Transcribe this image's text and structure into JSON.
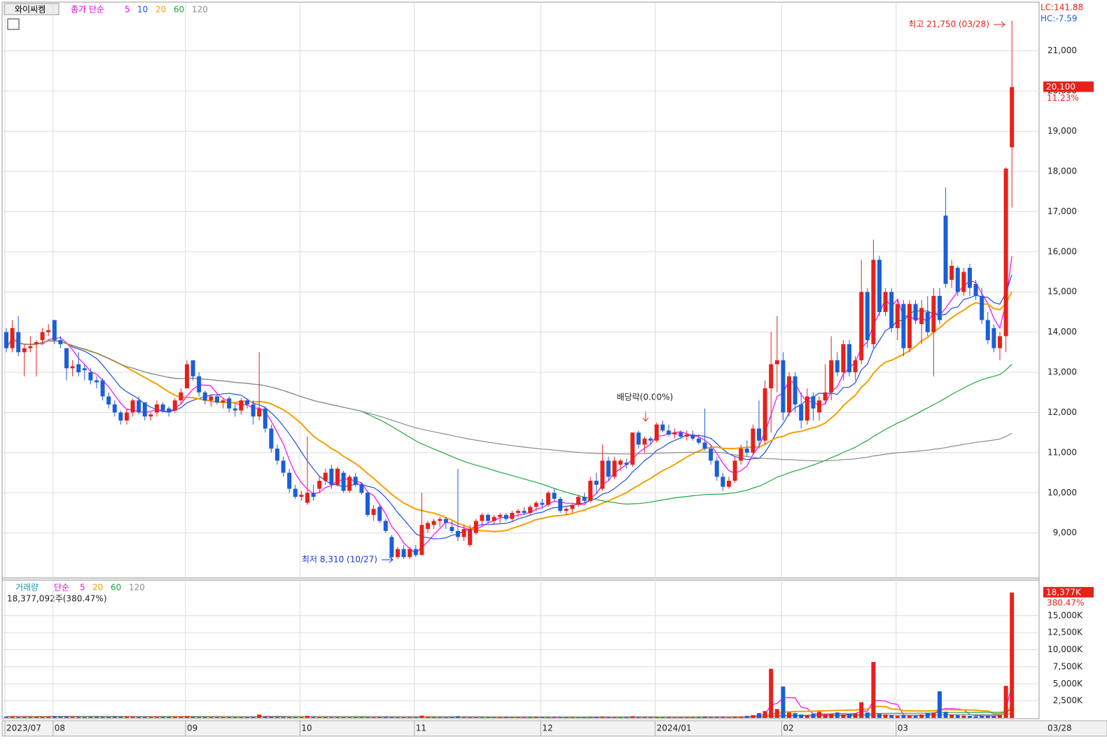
{
  "chart_data": {
    "type": "candlestick",
    "stock_name": "와이씨켐",
    "price_legend_label": "종가 단순",
    "price_ma": [
      {
        "period": 5,
        "color": "#ff00ff"
      },
      {
        "period": 10,
        "color": "#1f4fe0"
      },
      {
        "period": 20,
        "color": "#f5a000"
      },
      {
        "period": 60,
        "color": "#1fa83c"
      },
      {
        "period": 120,
        "color": "#8c8c8c"
      }
    ],
    "lc_label": "LC:141.88",
    "hc_label": "HC:-7.59",
    "high_annotation": "최고 21,750 (03/28)",
    "low_annotation": "최저 8,310 (10/27)",
    "event_annotation": "배당락(0.00%)",
    "last_price_label": "20,100",
    "last_change_label": "11.23%",
    "up_color": "#e8201a",
    "down_color": "#1a5ed8",
    "ylim": [
      7950,
      22180
    ],
    "yticks": [
      {
        "value": 9000,
        "label": "9,000"
      },
      {
        "value": 10000,
        "label": "10,000"
      },
      {
        "value": 11000,
        "label": "11,000"
      },
      {
        "value": 12000,
        "label": "12,000"
      },
      {
        "value": 13000,
        "label": "13,000"
      },
      {
        "value": 14000,
        "label": "14,000"
      },
      {
        "value": 15000,
        "label": "15,000"
      },
      {
        "value": 16000,
        "label": "16,000"
      },
      {
        "value": 17000,
        "label": "17,000"
      },
      {
        "value": 18000,
        "label": "18,000"
      },
      {
        "value": 19000,
        "label": "19,000"
      },
      {
        "value": 20000,
        "label": "20,000"
      },
      {
        "value": 21000,
        "label": "21,000"
      }
    ],
    "categories": [
      "2023/07",
      null,
      null,
      null,
      null,
      null,
      null,
      null,
      "08",
      null,
      null,
      null,
      null,
      null,
      null,
      null,
      null,
      null,
      null,
      null,
      null,
      null,
      null,
      null,
      null,
      null,
      null,
      null,
      null,
      null,
      "09",
      null,
      null,
      null,
      null,
      null,
      null,
      null,
      null,
      null,
      null,
      null,
      null,
      null,
      null,
      null,
      null,
      null,
      null,
      "10",
      null,
      null,
      null,
      null,
      null,
      null,
      null,
      null,
      null,
      null,
      null,
      null,
      null,
      null,
      null,
      null,
      null,
      null,
      "11",
      null,
      null,
      null,
      null,
      null,
      null,
      null,
      null,
      null,
      null,
      null,
      null,
      null,
      null,
      null,
      null,
      null,
      null,
      null,
      null,
      "12",
      null,
      null,
      null,
      null,
      null,
      null,
      null,
      null,
      null,
      null,
      null,
      null,
      null,
      null,
      null,
      null,
      null,
      null,
      "2024/01",
      null,
      null,
      null,
      null,
      null,
      null,
      null,
      null,
      null,
      null,
      null,
      null,
      null,
      null,
      null,
      null,
      null,
      null,
      null,
      null,
      "02",
      null,
      null,
      null,
      null,
      null,
      null,
      null,
      null,
      null,
      null,
      null,
      null,
      null,
      null,
      null,
      null,
      null,
      null,
      "03",
      null,
      null,
      null,
      null,
      null,
      null,
      null,
      null,
      null,
      null,
      null,
      null,
      null,
      null,
      null,
      null,
      null,
      null,
      null
    ],
    "x_end_label": "03/28",
    "ohlc": [
      [
        14000,
        14100,
        13500,
        13600
      ],
      [
        13600,
        14300,
        13500,
        14100
      ],
      [
        14000,
        14400,
        13400,
        13500
      ],
      [
        13500,
        13700,
        12900,
        13600
      ],
      [
        13600,
        13900,
        13500,
        13650
      ],
      [
        13700,
        13800,
        12900,
        13750
      ],
      [
        13800,
        14100,
        13700,
        14000
      ],
      [
        14000,
        14200,
        13900,
        14050
      ],
      [
        14300,
        14300,
        13700,
        13800
      ],
      [
        13800,
        13900,
        13600,
        13700
      ],
      [
        13600,
        13600,
        12800,
        13100
      ],
      [
        13100,
        13300,
        12900,
        13150
      ],
      [
        13200,
        13500,
        12900,
        13000
      ],
      [
        13100,
        13200,
        12800,
        13050
      ],
      [
        13000,
        13100,
        12700,
        12800
      ],
      [
        12800,
        12900,
        12600,
        12750
      ],
      [
        12800,
        12850,
        12300,
        12400
      ],
      [
        12400,
        12500,
        12100,
        12200
      ],
      [
        12200,
        12300,
        11900,
        12000
      ],
      [
        12000,
        12050,
        11700,
        11800
      ],
      [
        11800,
        12100,
        11700,
        12000
      ],
      [
        12000,
        12350,
        11900,
        12300
      ],
      [
        12300,
        12400,
        11950,
        12000
      ],
      [
        12250,
        12250,
        11800,
        11900
      ],
      [
        11900,
        12000,
        11800,
        11950
      ],
      [
        12000,
        12300,
        11900,
        12200
      ],
      [
        12200,
        12250,
        12000,
        12050
      ],
      [
        12100,
        12150,
        11900,
        12000
      ],
      [
        12050,
        12350,
        12000,
        12300
      ],
      [
        12300,
        12600,
        12200,
        12500
      ],
      [
        12600,
        13300,
        12600,
        13200
      ],
      [
        13300,
        13300,
        12800,
        12900
      ],
      [
        12900,
        13000,
        12400,
        12500
      ],
      [
        12500,
        12550,
        12200,
        12300
      ],
      [
        12300,
        12450,
        12150,
        12400
      ],
      [
        12400,
        12450,
        12200,
        12250
      ],
      [
        12250,
        12350,
        12100,
        12300
      ],
      [
        12350,
        12400,
        12000,
        12100
      ],
      [
        12100,
        12200,
        11900,
        12050
      ],
      [
        12050,
        12350,
        11950,
        12300
      ],
      [
        12300,
        12350,
        12100,
        12200
      ],
      [
        12200,
        12300,
        11700,
        11900
      ],
      [
        11900,
        13500,
        11800,
        12100
      ],
      [
        12100,
        12150,
        11500,
        11600
      ],
      [
        11600,
        11700,
        11000,
        11100
      ],
      [
        11100,
        11200,
        10700,
        10800
      ],
      [
        10800,
        10900,
        10400,
        10500
      ],
      [
        10500,
        10600,
        10000,
        10100
      ],
      [
        10100,
        10200,
        9850,
        9900
      ],
      [
        9900,
        10050,
        9800,
        9950
      ],
      [
        9750,
        11400,
        9700,
        10000
      ],
      [
        10000,
        10200,
        9800,
        9900
      ],
      [
        10100,
        10400,
        10000,
        10300
      ],
      [
        10300,
        10600,
        10200,
        10500
      ],
      [
        10600,
        10700,
        10100,
        10200
      ],
      [
        10200,
        10650,
        10150,
        10600
      ],
      [
        10500,
        10550,
        10000,
        10050
      ],
      [
        10050,
        10450,
        10000,
        10400
      ],
      [
        10400,
        10500,
        10150,
        10200
      ],
      [
        10200,
        10250,
        9950,
        10000
      ],
      [
        10000,
        10050,
        9400,
        9450
      ],
      [
        9450,
        9700,
        9300,
        9600
      ],
      [
        9650,
        9700,
        9250,
        9300
      ],
      [
        9300,
        9350,
        9000,
        9050
      ],
      [
        8900,
        8950,
        8310,
        8400
      ],
      [
        8400,
        8650,
        8350,
        8600
      ],
      [
        8600,
        8700,
        8350,
        8400
      ],
      [
        8400,
        8650,
        8350,
        8600
      ],
      [
        8600,
        8700,
        8400,
        8450
      ],
      [
        8450,
        10000,
        8450,
        9200
      ],
      [
        9100,
        9300,
        9000,
        9250
      ],
      [
        9200,
        9350,
        9100,
        9300
      ],
      [
        9300,
        9400,
        9150,
        9350
      ],
      [
        9350,
        9400,
        9100,
        9250
      ],
      [
        9150,
        9300,
        9000,
        9050
      ],
      [
        9050,
        10600,
        8800,
        8900
      ],
      [
        8900,
        9200,
        8800,
        9100
      ],
      [
        8700,
        9200,
        8650,
        9100
      ],
      [
        9000,
        9350,
        8950,
        9300
      ],
      [
        9300,
        9500,
        9200,
        9450
      ],
      [
        9450,
        9500,
        9250,
        9300
      ],
      [
        9300,
        9450,
        9200,
        9400
      ],
      [
        9400,
        9500,
        9250,
        9450
      ],
      [
        9450,
        9500,
        9300,
        9350
      ],
      [
        9350,
        9550,
        9300,
        9500
      ],
      [
        9500,
        9600,
        9400,
        9550
      ],
      [
        9550,
        9650,
        9450,
        9500
      ],
      [
        9500,
        9700,
        9450,
        9650
      ],
      [
        9650,
        9800,
        9550,
        9750
      ],
      [
        9750,
        9850,
        9600,
        9700
      ],
      [
        9700,
        10050,
        9650,
        10000
      ],
      [
        10000,
        10100,
        9800,
        9850
      ],
      [
        9850,
        9900,
        9500,
        9550
      ],
      [
        9550,
        9650,
        9450,
        9600
      ],
      [
        9600,
        9750,
        9500,
        9700
      ],
      [
        9700,
        9950,
        9650,
        9900
      ],
      [
        9900,
        10000,
        9750,
        9800
      ],
      [
        9800,
        10400,
        9750,
        10300
      ],
      [
        10300,
        10500,
        10000,
        10200
      ],
      [
        10100,
        11200,
        10050,
        10800
      ],
      [
        10800,
        10900,
        10300,
        10400
      ],
      [
        10400,
        10900,
        10350,
        10800
      ],
      [
        10700,
        10850,
        10550,
        10800
      ],
      [
        10750,
        10850,
        10600,
        10700
      ],
      [
        10700,
        11500,
        10650,
        11500
      ],
      [
        11500,
        11550,
        11100,
        11200
      ],
      [
        11200,
        11400,
        11000,
        11350
      ],
      [
        11350,
        11400,
        11200,
        11300
      ],
      [
        11300,
        11750,
        11250,
        11700
      ],
      [
        11700,
        11800,
        11500,
        11550
      ],
      [
        11550,
        11700,
        11400,
        11450
      ],
      [
        11450,
        11600,
        11350,
        11500
      ],
      [
        11500,
        11550,
        11350,
        11400
      ],
      [
        11400,
        11550,
        11300,
        11450
      ],
      [
        11450,
        11550,
        11300,
        11350
      ],
      [
        11350,
        11450,
        11200,
        11250
      ],
      [
        11250,
        12100,
        11050,
        11100
      ],
      [
        11100,
        11200,
        10700,
        10800
      ],
      [
        10800,
        10900,
        10300,
        10400
      ],
      [
        10400,
        10500,
        10050,
        10150
      ],
      [
        10150,
        10400,
        10100,
        10300
      ],
      [
        10300,
        10900,
        10250,
        10800
      ],
      [
        10800,
        11200,
        10700,
        11100
      ],
      [
        11100,
        11300,
        10900,
        11000
      ],
      [
        11000,
        11700,
        10950,
        11600
      ],
      [
        11600,
        12300,
        11100,
        11300
      ],
      [
        11300,
        12800,
        11200,
        12600
      ],
      [
        12600,
        14000,
        11500,
        13200
      ],
      [
        13200,
        14400,
        12500,
        13300
      ],
      [
        13300,
        13500,
        11800,
        12000
      ],
      [
        12000,
        13000,
        11900,
        12900
      ],
      [
        12900,
        13000,
        12000,
        12200
      ],
      [
        12200,
        12500,
        11600,
        11800
      ],
      [
        11800,
        12600,
        11700,
        12400
      ],
      [
        12400,
        12500,
        11800,
        12100
      ],
      [
        12000,
        12400,
        11800,
        12300
      ],
      [
        12300,
        13200,
        12200,
        12500
      ],
      [
        12500,
        13900,
        12300,
        13300
      ],
      [
        13300,
        13500,
        12900,
        13000
      ],
      [
        13000,
        13800,
        12800,
        13700
      ],
      [
        13700,
        13800,
        12900,
        13000
      ],
      [
        13000,
        13400,
        12800,
        13300
      ],
      [
        13300,
        15800,
        13200,
        15000
      ],
      [
        15000,
        15100,
        13600,
        13800
      ],
      [
        13700,
        16300,
        13600,
        15800
      ],
      [
        15800,
        15900,
        14400,
        14500
      ],
      [
        14500,
        15100,
        14400,
        15000
      ],
      [
        15000,
        15100,
        14000,
        14100
      ],
      [
        14100,
        14800,
        13800,
        14700
      ],
      [
        14700,
        14800,
        13400,
        13600
      ],
      [
        13600,
        14800,
        13500,
        14700
      ],
      [
        14700,
        14800,
        14200,
        14300
      ],
      [
        14200,
        14800,
        13700,
        14600
      ],
      [
        14500,
        14900,
        13900,
        14000
      ],
      [
        14000,
        15100,
        12900,
        14900
      ],
      [
        14900,
        15100,
        14200,
        14300
      ],
      [
        16900,
        17600,
        15100,
        15200
      ],
      [
        15300,
        15800,
        15100,
        15650
      ],
      [
        15600,
        15650,
        14900,
        15000
      ],
      [
        15000,
        15600,
        14900,
        15500
      ],
      [
        15600,
        15700,
        14900,
        15100
      ],
      [
        15200,
        15300,
        14800,
        14900
      ],
      [
        14900,
        15100,
        14200,
        14300
      ],
      [
        14300,
        14500,
        13700,
        13800
      ],
      [
        14100,
        14200,
        13500,
        13600
      ],
      [
        13600,
        14000,
        13300,
        13900
      ],
      [
        13900,
        18100,
        13500,
        18070
      ],
      [
        18600,
        21750,
        17100,
        20100
      ]
    ],
    "volume_legend_label": "거래량",
    "volume_ma_label": "단순",
    "volume_ma": [
      {
        "period": 5,
        "color": "#ff00ff"
      },
      {
        "period": 20,
        "color": "#f5a000"
      },
      {
        "period": 60,
        "color": "#1fa83c"
      },
      {
        "period": 120,
        "color": "#8c8c8c"
      }
    ],
    "volume_info": "18,377,092주(380.47%)",
    "last_volume_label": "18,377K",
    "last_volume_ratio": "380.47%",
    "volume_ylim": [
      0,
      19900
    ],
    "volume_ticks": [
      {
        "value": 2500,
        "label": "2,500K"
      },
      {
        "value": 5000,
        "label": "5,000K"
      },
      {
        "value": 7500,
        "label": "7,500K"
      },
      {
        "value": 10000,
        "label": "10,000K"
      },
      {
        "value": 12500,
        "label": "12,500K"
      },
      {
        "value": 15000,
        "label": "15,000K"
      }
    ],
    "volume": [
      180,
      220,
      150,
      170,
      160,
      200,
      190,
      210,
      250,
      200,
      230,
      180,
      170,
      160,
      190,
      200,
      170,
      180,
      210,
      190,
      200,
      170,
      160,
      150,
      140,
      160,
      150,
      170,
      180,
      200,
      260,
      180,
      150,
      140,
      120,
      110,
      120,
      130,
      110,
      120,
      110,
      150,
      480,
      200,
      180,
      160,
      150,
      140,
      130,
      120,
      300,
      150,
      130,
      140,
      120,
      110,
      100,
      90,
      100,
      120,
      110,
      100,
      130,
      150,
      120,
      110,
      100,
      90,
      110,
      330,
      150,
      120,
      110,
      100,
      140,
      260,
      120,
      110,
      100,
      90,
      100,
      90,
      100,
      110,
      100,
      90,
      100,
      110,
      120,
      110,
      100,
      120,
      90,
      100,
      90,
      80,
      100,
      120,
      150,
      180,
      120,
      110,
      100,
      140,
      250,
      130,
      120,
      110,
      120,
      100,
      110,
      90,
      100,
      120,
      110,
      130,
      200,
      150,
      140,
      130,
      120,
      200,
      180,
      300,
      400,
      700,
      1000,
      7200,
      1300,
      4600,
      800,
      700,
      500,
      400,
      600,
      900,
      500,
      600,
      800,
      500,
      600,
      700,
      2300,
      800,
      8200,
      600,
      500,
      400,
      300,
      400,
      350,
      300,
      500,
      700,
      800,
      3900,
      900,
      500,
      400,
      350,
      300,
      250,
      300,
      350,
      300,
      400,
      4700,
      18377.092
    ]
  }
}
